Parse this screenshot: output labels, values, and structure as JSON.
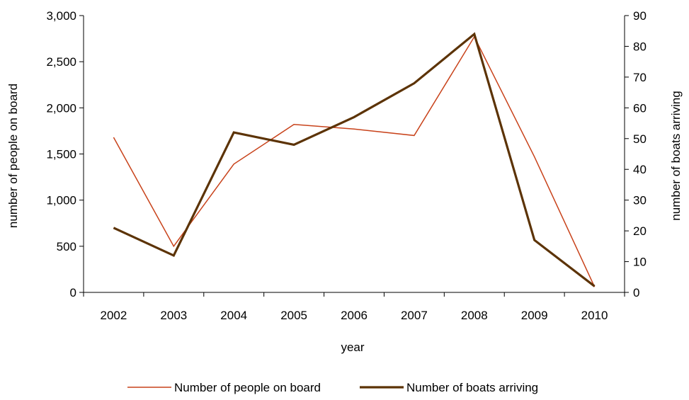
{
  "chart_data": {
    "type": "line",
    "categories": [
      "2002",
      "2003",
      "2004",
      "2005",
      "2006",
      "2007",
      "2008",
      "2009",
      "2010"
    ],
    "xlabel": "year",
    "ylabel_left": "number of people on board",
    "ylabel_right": "number of boats arriving",
    "ylim_left": [
      0,
      3000
    ],
    "ylim_right": [
      0,
      90
    ],
    "yticks_left": [
      0,
      500,
      1000,
      1500,
      2000,
      2500,
      3000
    ],
    "yticks_left_labels": [
      "0",
      "500",
      "1,000",
      "1,500",
      "2,000",
      "2,500",
      "3,000"
    ],
    "yticks_right": [
      0,
      10,
      20,
      30,
      40,
      50,
      60,
      70,
      80,
      90
    ],
    "yticks_right_labels": [
      "0",
      "10",
      "20",
      "30",
      "40",
      "50",
      "60",
      "70",
      "80",
      "90"
    ],
    "grid": false,
    "legend_position": "bottom",
    "series": [
      {
        "name": "Number of people on board",
        "axis": "left",
        "color": "#c8421a",
        "values": [
          1680,
          500,
          1390,
          1820,
          1770,
          1700,
          2770,
          1470,
          60
        ]
      },
      {
        "name": "Number of boats arriving",
        "axis": "right",
        "color": "#5c3306",
        "values": [
          21,
          12,
          52,
          48,
          57,
          68,
          84,
          17,
          2
        ]
      }
    ]
  }
}
